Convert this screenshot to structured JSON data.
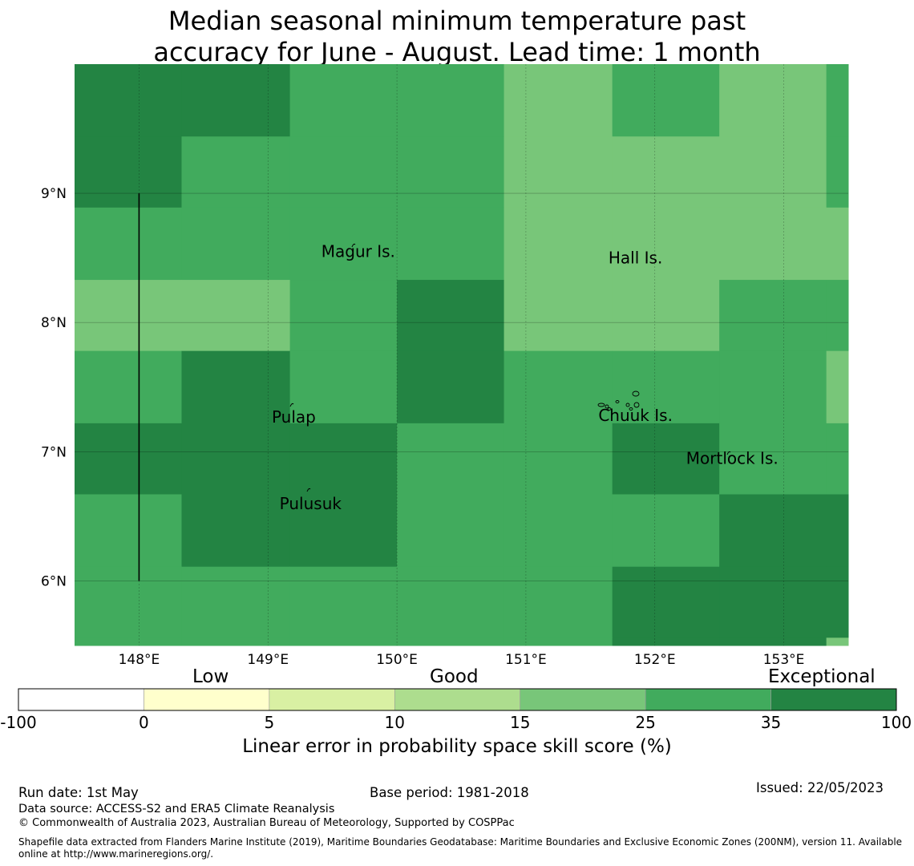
{
  "title_line1": "Median seasonal minimum temperature past",
  "title_line2": "accuracy for June - August. Lead time: 1 month",
  "map": {
    "lon_range": [
      147.5,
      153.5
    ],
    "lat_range": [
      5.5,
      10.0
    ],
    "lon_ticks": [
      "148°E",
      "149°E",
      "150°E",
      "151°E",
      "152°E",
      "153°E"
    ],
    "lat_ticks": [
      "9°N",
      "8°N",
      "7°N",
      "6°N"
    ],
    "cell_grid": {
      "lon_edges": [
        147.5,
        148.33,
        149.17,
        150.0,
        150.83,
        151.67,
        152.5,
        153.33,
        153.5
      ],
      "lat_edges_top_to_bottom": [
        10.0,
        9.44,
        8.89,
        8.33,
        7.78,
        7.22,
        6.67,
        6.11,
        5.56,
        5.5
      ],
      "class_index_rows": [
        [
          6,
          6,
          5,
          5,
          4,
          5,
          4,
          5
        ],
        [
          6,
          5,
          5,
          5,
          4,
          4,
          4,
          5
        ],
        [
          5,
          5,
          5,
          5,
          4,
          4,
          4,
          4
        ],
        [
          4,
          4,
          5,
          6,
          4,
          4,
          5,
          5
        ],
        [
          5,
          6,
          5,
          6,
          5,
          5,
          5,
          4
        ],
        [
          6,
          6,
          6,
          5,
          5,
          6,
          5,
          5
        ],
        [
          5,
          6,
          6,
          5,
          5,
          5,
          6,
          6
        ],
        [
          5,
          5,
          5,
          5,
          5,
          6,
          6,
          6
        ],
        [
          5,
          5,
          5,
          5,
          5,
          6,
          6,
          4
        ]
      ]
    },
    "places": [
      {
        "name": "Magur Is.",
        "lon": 149.7,
        "lat": 8.55
      },
      {
        "name": "Hall Is.",
        "lon": 151.85,
        "lat": 8.5
      },
      {
        "name": "Pulap",
        "lon": 149.2,
        "lat": 7.27
      },
      {
        "name": "Chuuk Is.",
        "lon": 151.85,
        "lat": 7.28
      },
      {
        "name": "Mortlock Is.",
        "lon": 152.6,
        "lat": 6.95
      },
      {
        "name": "Pulusuk",
        "lon": 149.33,
        "lat": 6.6
      }
    ],
    "boundary_line": {
      "lon": 148.0,
      "lat_from": 9.0,
      "lat_to": 6.0
    }
  },
  "colorbar": {
    "categories": [
      "Low",
      "Good",
      "Exceptional"
    ],
    "ticks": [
      "-100",
      "0",
      "5",
      "10",
      "15",
      "25",
      "35",
      "100"
    ],
    "colors": [
      "#ffffff",
      "#ffffcc",
      "#d9f0a3",
      "#addd8e",
      "#78c679",
      "#41ab5d",
      "#238443"
    ],
    "label": "Linear error in probability space skill score (%)"
  },
  "footer": {
    "run_date": "Run date: 1st May",
    "base_period": "Base period: 1981-2018",
    "issued": "Issued: 22/05/2023",
    "data_source": "Data source: ACCESS-S2 and ERA5 Climate Reanalysis",
    "copyright": "© Commonwealth of Australia 2023, Australian Bureau of Meteorology, Supported by COSPPac",
    "shapefile_line1": "Shapefile data extracted from Flanders Marine Institute (2019), Maritime Boundaries Geodatabase: Maritime Boundaries and Exclusive Economic Zones (200NM), version 11. Available",
    "shapefile_line2": "online at http://www.marineregions.org/."
  }
}
